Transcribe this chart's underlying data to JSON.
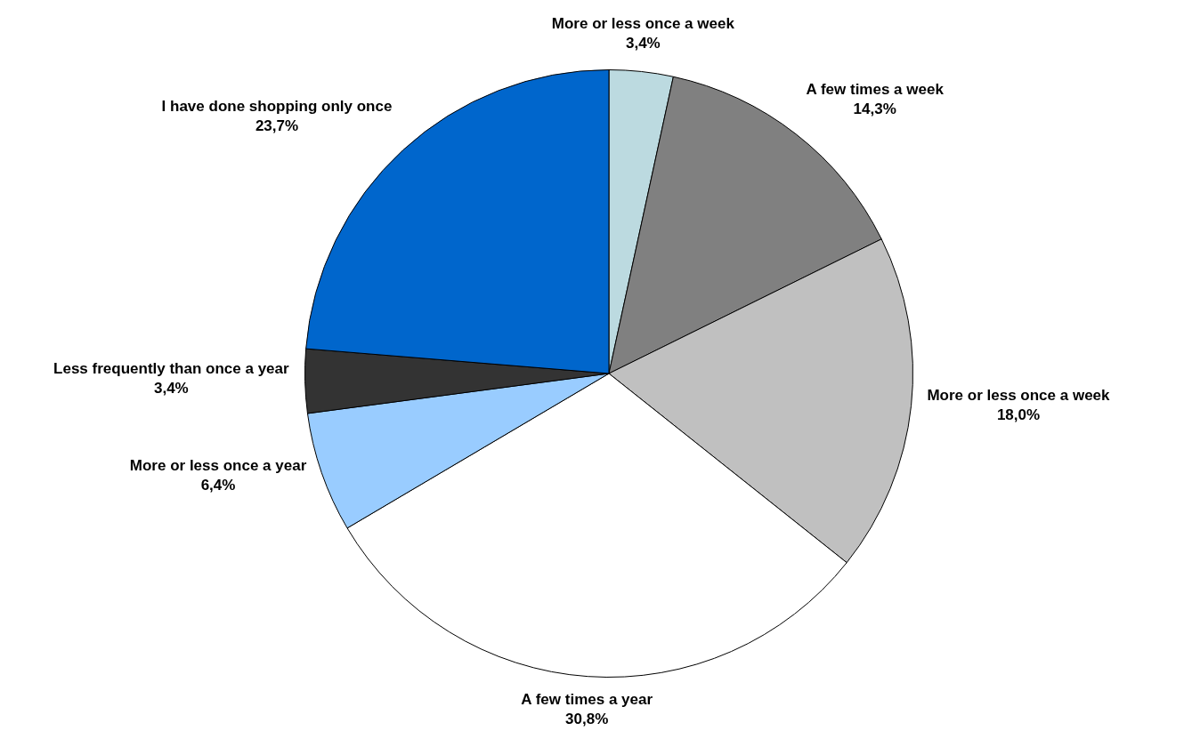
{
  "chart_data": {
    "type": "pie",
    "categories": [
      "More or less once a week",
      "A few times a week",
      "More or less once a week",
      "A few times a year",
      "More or less once a year",
      "Less frequently than once a year",
      "I have done shopping only once"
    ],
    "values": [
      3.4,
      14.3,
      18.0,
      30.8,
      6.4,
      3.4,
      23.7
    ],
    "value_labels": [
      "3,4%",
      "14,3%",
      "18,0%",
      "30,8%",
      "6,4%",
      "3,4%",
      "23,7%"
    ],
    "colors": [
      "#bcdae0",
      "#808080",
      "#c0c0c0",
      "#ffffff",
      "#99ccff",
      "#333333",
      "#0066cc"
    ],
    "legend": false
  }
}
